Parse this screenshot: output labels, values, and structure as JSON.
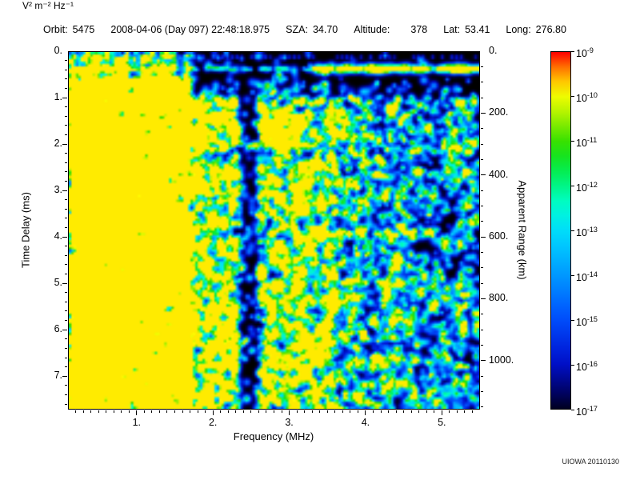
{
  "header": {
    "items": [
      {
        "label": "Orbit:",
        "value": "5475"
      },
      {
        "label": "",
        "value": "2008-04-06 (Day 097) 22:48:18.975"
      },
      {
        "label": "SZA:",
        "value": "34.70"
      },
      {
        "label": "Altitude:",
        "value": "378"
      },
      {
        "label": "Lat:",
        "value": "53.41"
      },
      {
        "label": "Long:",
        "value": "276.80"
      }
    ]
  },
  "footer": {
    "watermark": "UIOWA 20110130"
  },
  "chart_data": {
    "type": "heatmap",
    "xlabel": "Frequency (MHz)",
    "ylabel_left": "Time Delay (ms)",
    "ylabel_right": "Apparent Range (km)",
    "x_axis": {
      "min": 0.1,
      "max": 5.5,
      "major_ticks": [
        1,
        2,
        3,
        4,
        5
      ],
      "major_labels": [
        "1.",
        "2.",
        "3.",
        "4.",
        "5."
      ],
      "minor_step": 0.1
    },
    "y_axis": {
      "min": 0,
      "max": 7.72,
      "major_ticks": [
        0,
        1,
        2,
        3,
        4,
        5,
        6,
        7
      ],
      "major_labels": [
        "0.",
        "1.",
        "2.",
        "3.",
        "4.",
        "5.",
        "6.",
        "7."
      ],
      "minor_step": 0.2
    },
    "y2_axis": {
      "km_per_ms": 150,
      "major_ticks": [
        0,
        200,
        400,
        600,
        800,
        1000
      ],
      "major_labels": [
        "0.",
        "200.",
        "400.",
        "600.",
        "800.",
        "1000."
      ],
      "minor_step": 50
    },
    "colorbar": {
      "base": "10",
      "exponents": [
        "-9",
        "-10",
        "-11",
        "-12",
        "-13",
        "-14",
        "-15",
        "-16",
        "-17"
      ],
      "unit_label": "V² m⁻² Hz⁻¹"
    },
    "colormap_stops": [
      [
        0.0,
        "#000000"
      ],
      [
        0.05,
        "#000050"
      ],
      [
        0.15,
        "#0010d0"
      ],
      [
        0.28,
        "#0055ff"
      ],
      [
        0.4,
        "#00a0ff"
      ],
      [
        0.5,
        "#00d8ff"
      ],
      [
        0.58,
        "#00ffd0"
      ],
      [
        0.66,
        "#00f060"
      ],
      [
        0.74,
        "#20dd00"
      ],
      [
        0.82,
        "#a0f000"
      ],
      [
        0.89,
        "#ffff00"
      ],
      [
        0.95,
        "#ff8800"
      ],
      [
        1.0,
        "#ff0000"
      ]
    ],
    "features": {
      "seed": 1337,
      "grid": {
        "nx": 172,
        "ny": 150
      },
      "top_line": {
        "delay_ms": 0.08,
        "amp": 0.25
      },
      "surface_band": {
        "delay_ms": 0.34,
        "amp_low": 0.74,
        "amp_mid": 0.54,
        "amp_high": 0.78,
        "f_mid_start": 1.05,
        "f_high_start": 3.35
      },
      "plasma_stripes": [
        {
          "f": 0.115,
          "amp": 0.8
        },
        {
          "f": 0.175,
          "amp": 0.55
        },
        {
          "f": 0.24,
          "amp": 0.6
        },
        {
          "f": 0.305,
          "amp": 0.68
        },
        {
          "f": 0.375,
          "amp": 0.5
        },
        {
          "f": 0.45,
          "amp": 0.68
        },
        {
          "f": 0.52,
          "amp": 0.48
        },
        {
          "f": 0.6,
          "amp": 0.62
        },
        {
          "f": 0.68,
          "amp": 0.45
        },
        {
          "f": 0.76,
          "amp": 0.52
        },
        {
          "f": 0.85,
          "amp": 0.46
        },
        {
          "f": 0.95,
          "amp": 0.6
        },
        {
          "f": 1.06,
          "amp": 0.5
        },
        {
          "f": 1.18,
          "amp": 0.46
        },
        {
          "f": 1.31,
          "amp": 0.66
        },
        {
          "f": 1.47,
          "amp": 0.5
        },
        {
          "f": 1.63,
          "amp": 0.7
        }
      ],
      "echo_trace": [
        [
          0.1,
          1.15
        ],
        [
          0.7,
          1.13
        ],
        [
          1.2,
          1.15
        ],
        [
          1.4,
          1.2
        ],
        [
          1.52,
          1.42
        ],
        [
          1.62,
          1.6
        ],
        [
          1.78,
          1.82
        ],
        [
          2.0,
          1.92
        ],
        [
          2.4,
          1.97
        ],
        [
          2.9,
          2.0
        ],
        [
          3.2,
          2.0
        ]
      ],
      "echo_amp": [
        0.72,
        0.7,
        0.68,
        0.62,
        0.6,
        0.58,
        0.5,
        0.45,
        0.42,
        0.36,
        0.3
      ],
      "hot_spots": [
        [
          0.16,
          2.12,
          0.8,
          2.2
        ],
        [
          0.3,
          2.2,
          0.6,
          1.4
        ],
        [
          0.13,
          3.22,
          0.65,
          1.2
        ],
        [
          0.13,
          4.5,
          0.6,
          1.1
        ],
        [
          0.13,
          5.18,
          0.62,
          1.1
        ],
        [
          0.13,
          6.28,
          0.6,
          1.1
        ],
        [
          0.35,
          6.3,
          0.5,
          1.0
        ],
        [
          0.13,
          7.3,
          0.6,
          1.1
        ],
        [
          1.05,
          0.33,
          0.88,
          1.5
        ],
        [
          0.45,
          1.62,
          0.55,
          1.0
        ],
        [
          3.9,
          2.9,
          0.45,
          0.9
        ],
        [
          4.62,
          2.1,
          0.42,
          0.9
        ],
        [
          5.05,
          6.5,
          0.4,
          0.9
        ],
        [
          4.3,
          4.3,
          0.4,
          0.9
        ]
      ],
      "vertical_streaks": [
        {
          "f": 2.78,
          "t0": 0.5,
          "t1": 2.6,
          "amp": 0.42
        },
        {
          "f": 2.95,
          "t0": 0.8,
          "t1": 2.3,
          "amp": 0.36
        },
        {
          "f": 3.07,
          "t0": 1.0,
          "t1": 2.1,
          "amp": 0.3
        },
        {
          "f": 2.8,
          "t0": 2.6,
          "t1": 7.2,
          "amp": 0.2
        },
        {
          "f": 3.45,
          "t0": 0.9,
          "t1": 1.7,
          "amp": 0.3
        },
        {
          "f": 3.62,
          "t0": 1.0,
          "t1": 1.9,
          "amp": 0.28
        }
      ],
      "noise": {
        "samples": 26000,
        "regions": [
          {
            "f0": 0.1,
            "f1": 1.7,
            "d": 1.0
          },
          {
            "f0": 1.7,
            "f1": 2.33,
            "d": 0.55
          },
          {
            "f0": 2.33,
            "f1": 2.58,
            "d": 0.07
          },
          {
            "f0": 2.58,
            "f1": 3.6,
            "d": 0.5
          },
          {
            "f0": 3.6,
            "f1": 4.5,
            "d": 0.32
          },
          {
            "f0": 4.5,
            "f1": 5.5,
            "d": 0.25
          }
        ]
      }
    }
  }
}
